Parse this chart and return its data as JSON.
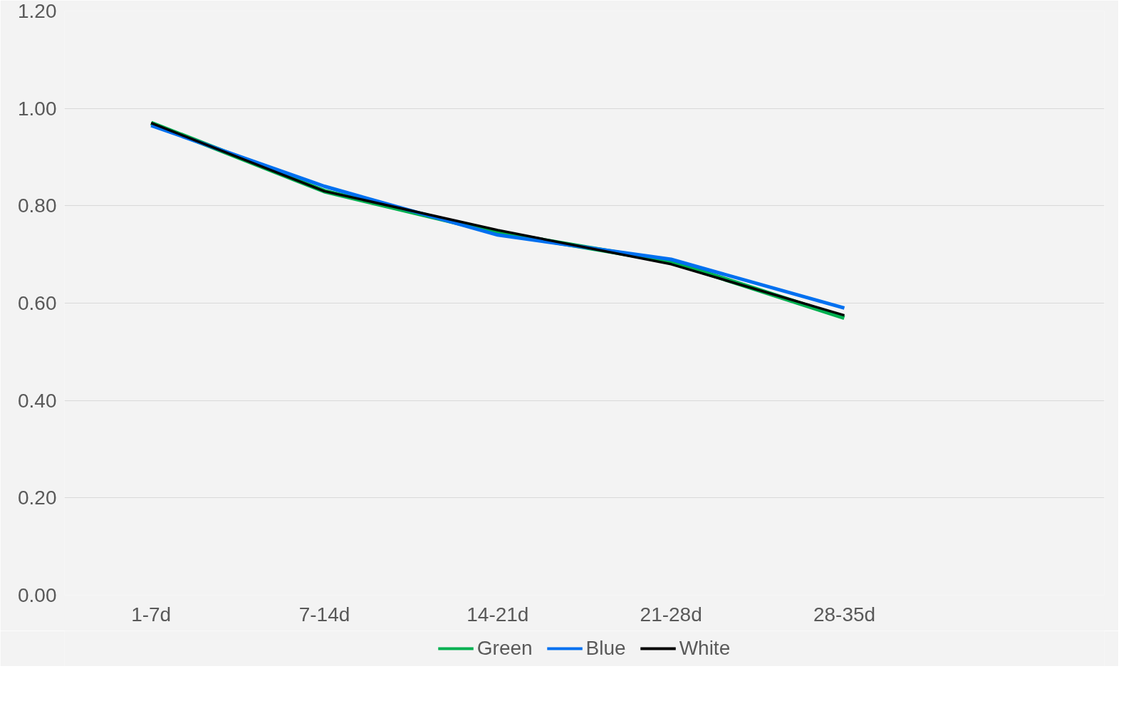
{
  "chart_data": {
    "type": "line",
    "categories": [
      "1-7d",
      "7-14d",
      "14-21d",
      "21-28d",
      "28-35d",
      null
    ],
    "series": [
      {
        "name": "Green",
        "color": "#00b050",
        "values": [
          0.97,
          0.83,
          0.745,
          0.685,
          0.57,
          null
        ]
      },
      {
        "name": "Blue",
        "color": "#0070f0",
        "values": [
          0.965,
          0.84,
          0.74,
          0.69,
          0.59,
          null
        ]
      },
      {
        "name": "White",
        "color": "#000000",
        "values": [
          0.97,
          0.83,
          0.75,
          0.68,
          0.575,
          null
        ]
      }
    ],
    "ylim": [
      0,
      1.2
    ],
    "yticks": [
      {
        "value": 0,
        "label": "0.00"
      },
      {
        "value": 0.2,
        "label": "0.20"
      },
      {
        "value": 0.4,
        "label": "0.40"
      },
      {
        "value": 0.6,
        "label": "0.60"
      },
      {
        "value": 0.8,
        "label": "0.80"
      },
      {
        "value": 1.0,
        "label": "1.00"
      },
      {
        "value": 1.2,
        "label": "1.20"
      }
    ],
    "grid": "y",
    "legend": "bottom",
    "marker": "none",
    "line_style": "solid"
  }
}
